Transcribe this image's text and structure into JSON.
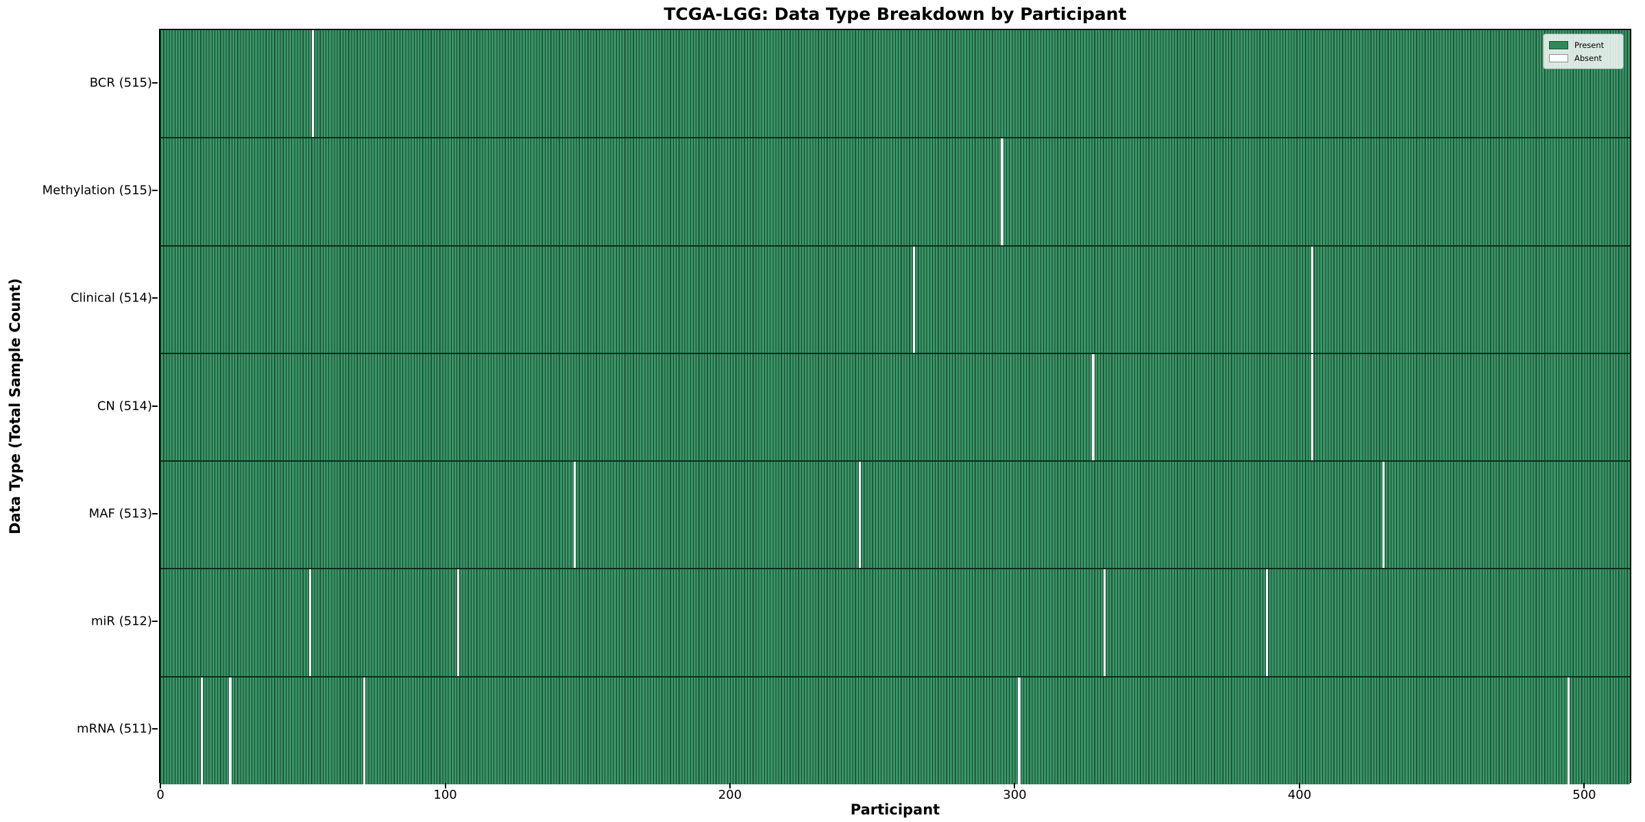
{
  "chart_data": {
    "type": "heatmap",
    "title": "TCGA-LGG: Data Type Breakdown by Participant",
    "xlabel": "Participant",
    "ylabel": "Data Type (Total Sample Count)",
    "total_participants": 516,
    "xlim": [
      -0.5,
      516.5
    ],
    "x_ticks": [
      0,
      100,
      200,
      300,
      400,
      500
    ],
    "grid": false,
    "present_color": "#2e8b57",
    "absent_color": "#ffffff",
    "legend": {
      "position": "upper right",
      "entries": [
        {
          "label": "Present",
          "color": "#2e8b57"
        },
        {
          "label": "Absent",
          "color": "#ffffff"
        }
      ]
    },
    "rows": [
      {
        "data_type": "BCR",
        "label": "BCR (515)",
        "present_count": 515,
        "absent_participants": [
          53
        ]
      },
      {
        "data_type": "Methylation",
        "label": "Methylation (515)",
        "present_count": 515,
        "absent_participants": [
          295
        ]
      },
      {
        "data_type": "Clinical",
        "label": "Clinical (514)",
        "present_count": 514,
        "absent_participants": [
          264,
          404
        ]
      },
      {
        "data_type": "CN",
        "label": "CN (514)",
        "present_count": 514,
        "absent_participants": [
          327,
          404
        ]
      },
      {
        "data_type": "MAF",
        "label": "MAF (513)",
        "present_count": 513,
        "absent_participants": [
          145,
          245,
          429
        ]
      },
      {
        "data_type": "miR",
        "label": "miR (512)",
        "present_count": 512,
        "absent_participants": [
          52,
          104,
          331,
          388
        ]
      },
      {
        "data_type": "mRNA",
        "label": "mRNA (511)",
        "present_count": 511,
        "absent_participants": [
          14,
          24,
          71,
          301,
          494
        ]
      }
    ]
  }
}
